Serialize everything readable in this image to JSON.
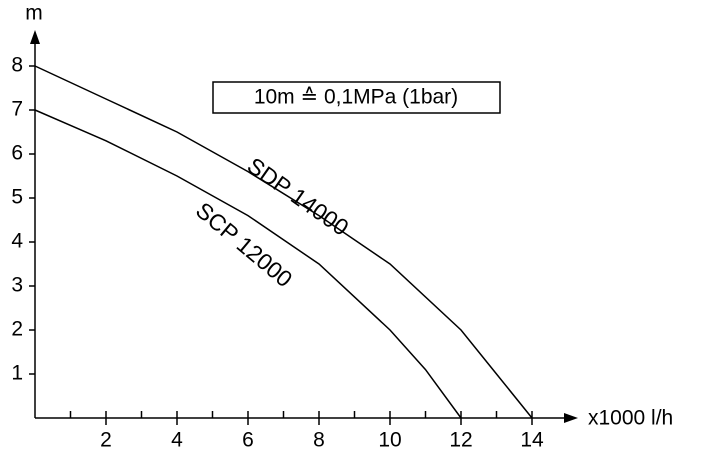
{
  "chart_data": {
    "type": "line",
    "x_label": "x1000 l/h",
    "y_label": "m",
    "annotation": "10m ≙ 0,1MPa (1bar)",
    "series": [
      {
        "name": "SDP 14000",
        "color": "#000000",
        "x": [
          0,
          2,
          4,
          6,
          8,
          10,
          12,
          13,
          14
        ],
        "values": [
          8,
          7.25,
          6.5,
          5.6,
          4.6,
          3.5,
          2.0,
          1.0,
          0
        ]
      },
      {
        "name": "SCP 12000",
        "color": "#000000",
        "x": [
          0,
          2,
          4,
          6,
          8,
          10,
          11,
          12
        ],
        "values": [
          7,
          6.3,
          5.5,
          4.6,
          3.5,
          2.0,
          1.1,
          0
        ]
      }
    ],
    "xlim": [
      0,
      15
    ],
    "ylim": [
      0,
      8.8
    ],
    "xticks": [
      2,
      4,
      6,
      8,
      10,
      12,
      14
    ],
    "xminorticks": [
      1,
      3,
      5,
      7,
      9,
      11,
      13
    ],
    "yticks": [
      1,
      2,
      3,
      4,
      5,
      6,
      7,
      8
    ]
  }
}
